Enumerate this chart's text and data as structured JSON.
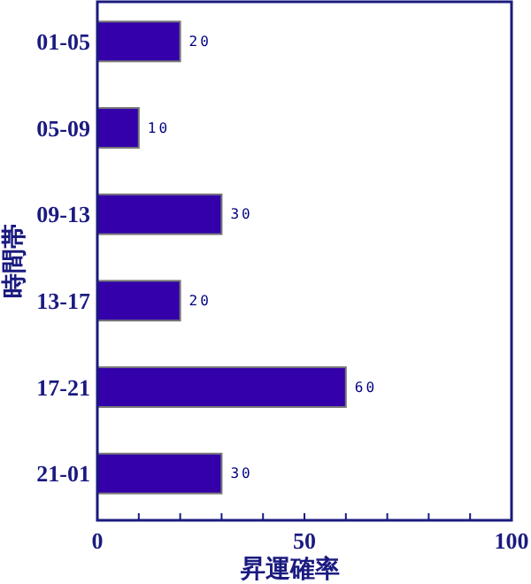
{
  "chart_data": {
    "type": "bar",
    "orientation": "horizontal",
    "xlabel": "昇運確率",
    "ylabel": "時間帯",
    "categories": [
      "01-05",
      "05-09",
      "09-13",
      "13-17",
      "17-21",
      "21-01"
    ],
    "values": [
      20,
      10,
      30,
      20,
      60,
      30
    ],
    "color": "#3300aa",
    "data_labels": true,
    "xlim": [
      0,
      100
    ],
    "xticks": [
      0,
      {
        "value": 10,
        "label": null
      },
      {
        "value": 20,
        "label": null
      },
      {
        "value": 30,
        "label": null
      },
      {
        "value": 40,
        "label": null
      },
      50,
      {
        "value": 60,
        "label": null
      },
      {
        "value": 70,
        "label": null
      },
      {
        "value": 80,
        "label": null
      },
      {
        "value": 90,
        "label": null
      },
      100
    ],
    "grid": false
  }
}
